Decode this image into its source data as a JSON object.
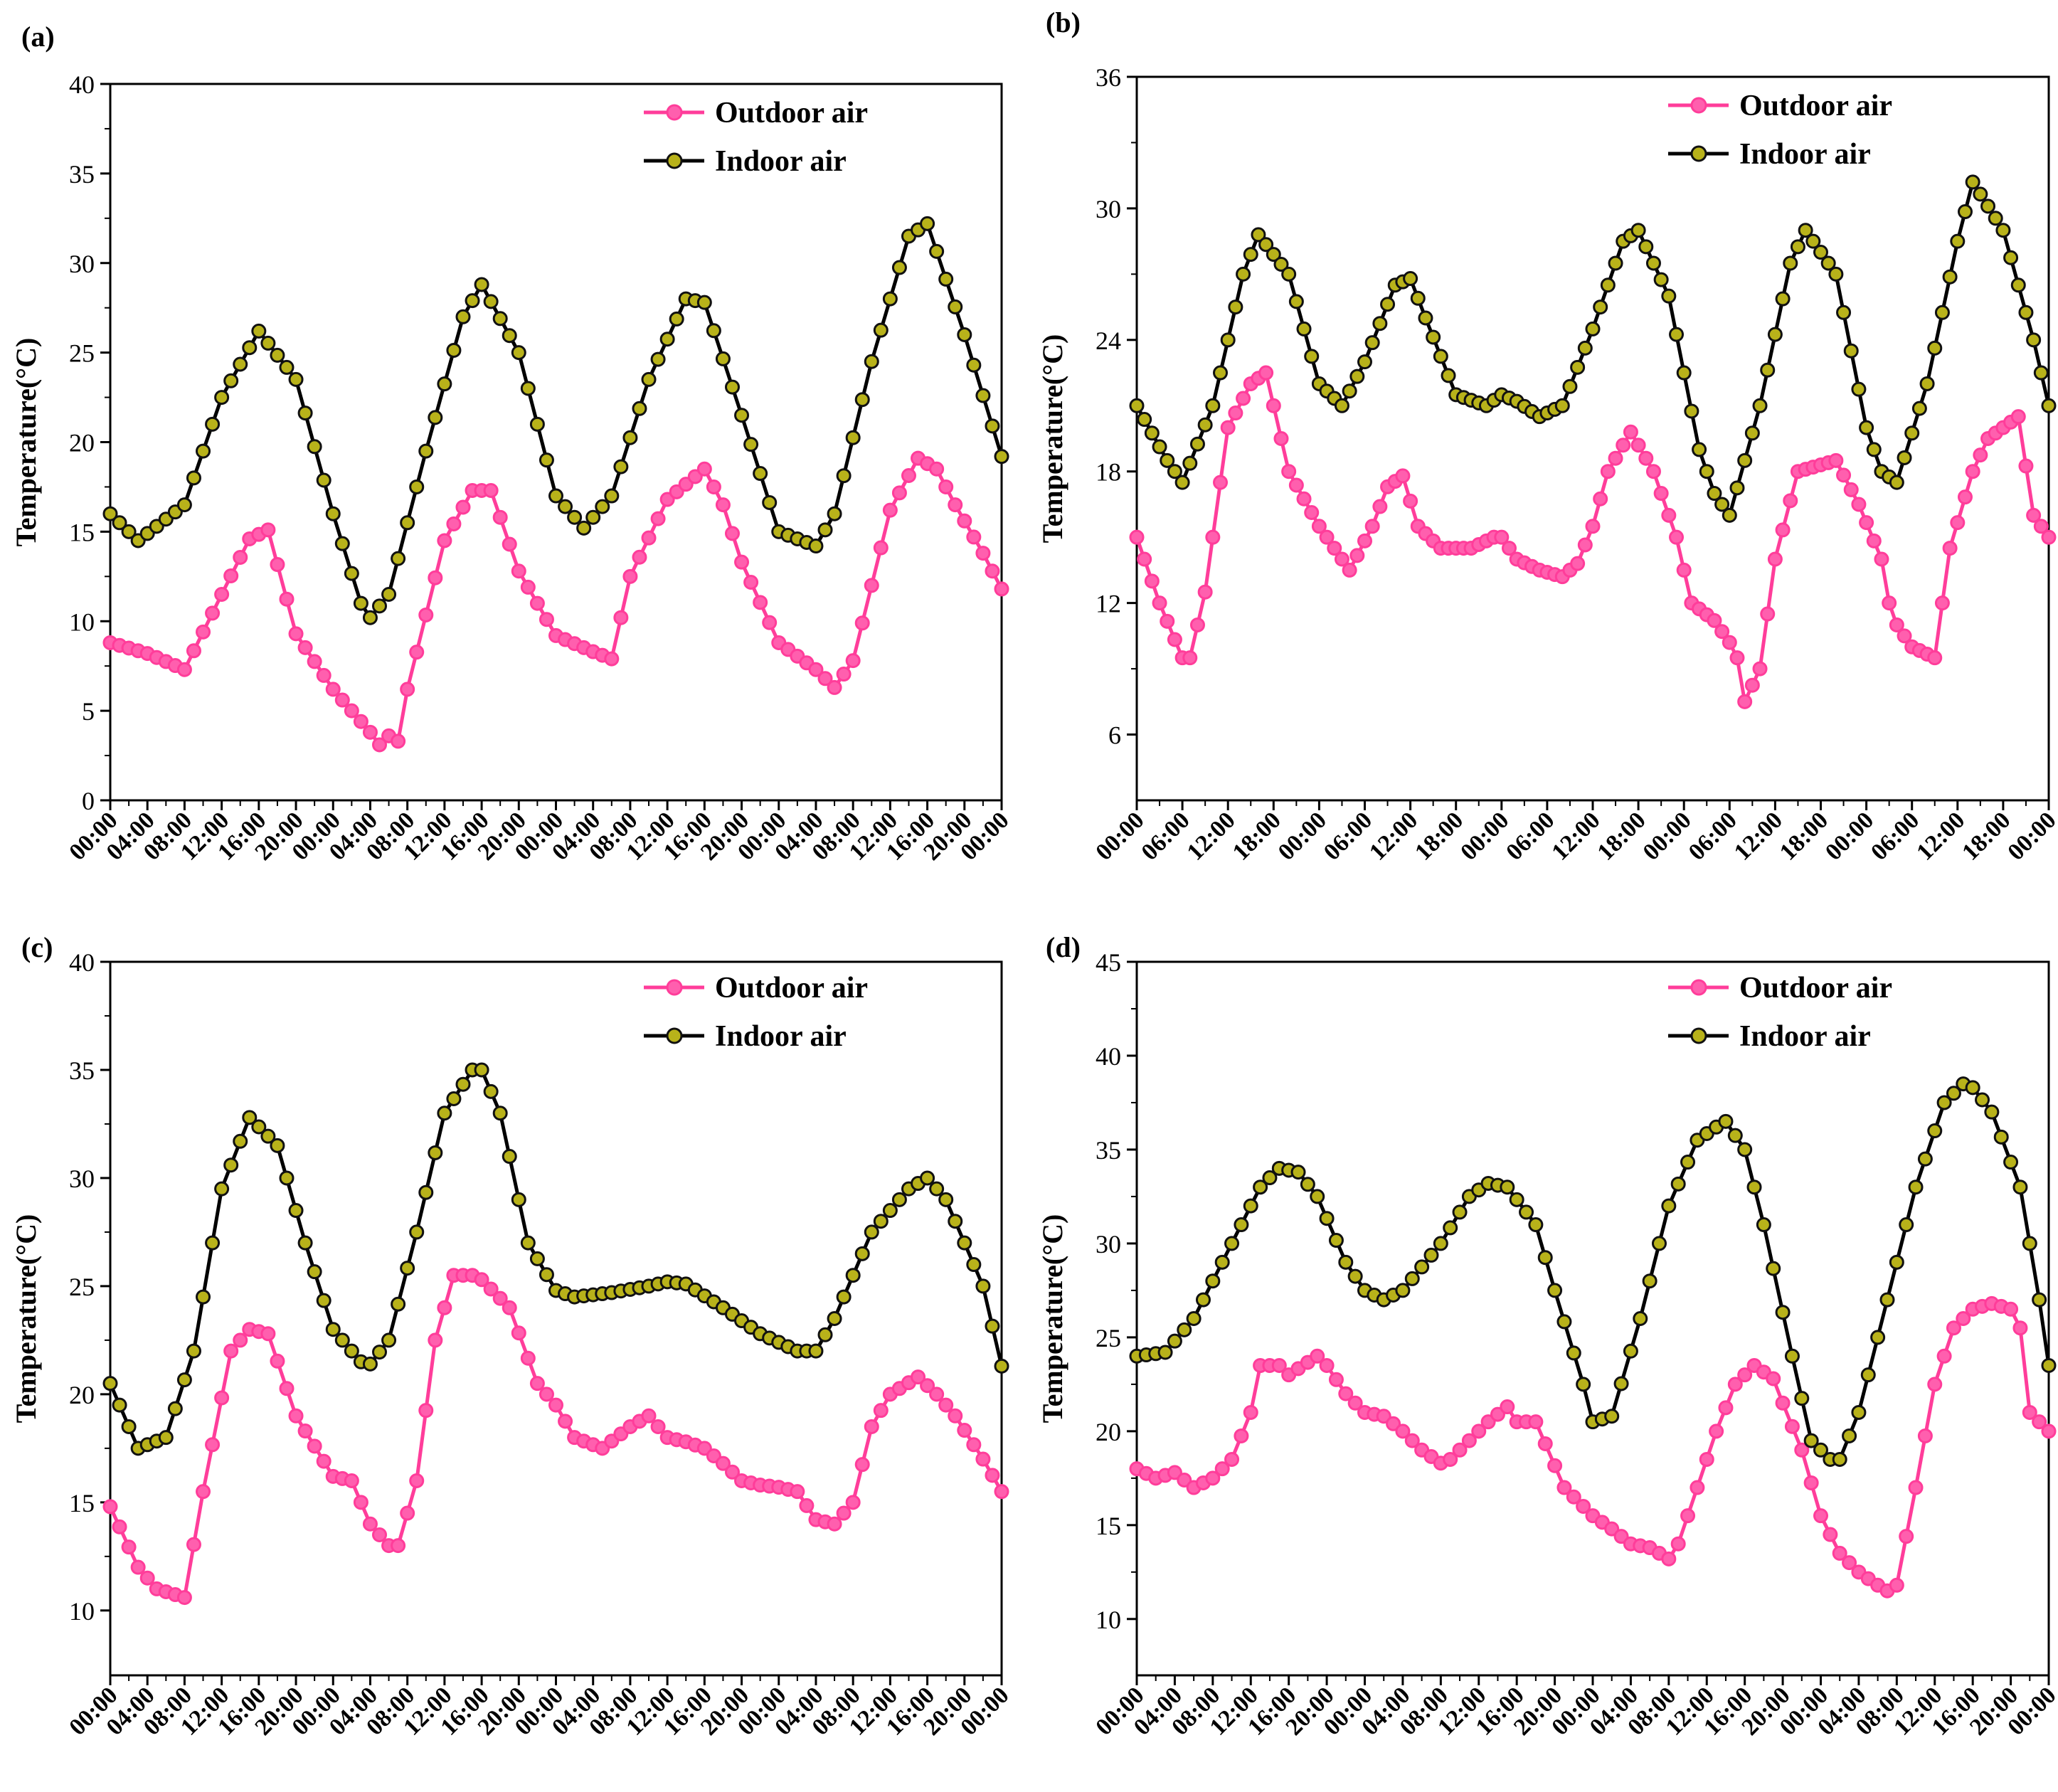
{
  "colors": {
    "outdoor": "#ff3d9a",
    "outdoor_fill": "#ff5fae",
    "indoor": "#000000",
    "indoor_fill": "#b8b21a"
  },
  "chart_data": [
    {
      "panel_label": "(a)",
      "type": "line",
      "ylabel": "Temperature(°C)",
      "ylim": [
        0,
        40
      ],
      "yticks": [
        "0",
        "5",
        "10",
        "15",
        "20",
        "25",
        "30",
        "35",
        "40"
      ],
      "xlim": [
        0,
        96
      ],
      "xtick_labels": [
        "00:00",
        "04:00",
        "08:00",
        "12:00",
        "16:00",
        "20:00",
        "00:00",
        "04:00",
        "08:00",
        "12:00",
        "16:00",
        "20:00",
        "00:00",
        "04:00",
        "08:00",
        "12:00",
        "16:00",
        "20:00",
        "00:00",
        "04:00",
        "08:00",
        "12:00",
        "16:00",
        "20:00",
        "00:00"
      ],
      "xtick_hours": [
        0,
        4,
        8,
        12,
        16,
        20,
        24,
        28,
        32,
        36,
        40,
        44,
        48,
        52,
        56,
        60,
        64,
        68,
        72,
        76,
        80,
        84,
        88,
        92,
        96
      ],
      "legend": [
        "Outdoor air",
        "Indoor air"
      ],
      "series": [
        {
          "name": "Outdoor air",
          "x": [
            0,
            4,
            8,
            12,
            15,
            17,
            20,
            24,
            28,
            29,
            30,
            31,
            32,
            36,
            39,
            41,
            44,
            48,
            52,
            54,
            56,
            60,
            64,
            66,
            68,
            72,
            76,
            78,
            80,
            84,
            87,
            89,
            91,
            94,
            96
          ],
          "y": [
            8.8,
            8.2,
            7.3,
            11.5,
            14.6,
            15.1,
            9.3,
            6.2,
            3.8,
            3.1,
            3.6,
            3.3,
            6.2,
            14.5,
            17.3,
            17.3,
            12.8,
            9.2,
            8.3,
            7.9,
            12.5,
            16.8,
            18.5,
            16.5,
            13.3,
            8.8,
            7.3,
            6.3,
            7.8,
            16.2,
            19.1,
            18.5,
            16.5,
            13.8,
            11.8
          ]
        },
        {
          "name": "Indoor air",
          "x": [
            0,
            3,
            8,
            12,
            16,
            20,
            24,
            27,
            28,
            30,
            34,
            38,
            40,
            44,
            48,
            51,
            54,
            58,
            62,
            64,
            68,
            72,
            76,
            78,
            82,
            86,
            88,
            92,
            96
          ],
          "y": [
            16.0,
            14.5,
            16.5,
            22.5,
            26.2,
            23.5,
            16.0,
            11.0,
            10.2,
            11.5,
            19.5,
            27.0,
            28.8,
            25.0,
            17.0,
            15.2,
            17.0,
            23.5,
            28.0,
            27.8,
            21.5,
            15.0,
            14.2,
            16.0,
            24.5,
            31.5,
            32.2,
            26.0,
            19.2
          ]
        }
      ]
    },
    {
      "panel_label": "(b)",
      "type": "line",
      "ylabel": "Temperature(°C)",
      "ylim": [
        3,
        36
      ],
      "yticks": [
        "6",
        "12",
        "18",
        "24",
        "30",
        "36"
      ],
      "xlim": [
        0,
        120
      ],
      "xtick_labels": [
        "00:00",
        "06:00",
        "12:00",
        "18:00",
        "00:00",
        "06:00",
        "12:00",
        "18:00",
        "00:00",
        "06:00",
        "12:00",
        "18:00",
        "00:00",
        "06:00",
        "12:00",
        "18:00",
        "00:00",
        "06:00",
        "12:00",
        "18:00",
        "00:00"
      ],
      "xtick_hours": [
        0,
        6,
        12,
        18,
        24,
        30,
        36,
        42,
        48,
        54,
        60,
        66,
        72,
        78,
        84,
        90,
        96,
        102,
        108,
        114,
        120
      ],
      "legend": [
        "Outdoor air",
        "Indoor air"
      ],
      "series": [
        {
          "name": "Outdoor air",
          "x": [
            0,
            3,
            6,
            7,
            9,
            12,
            15,
            17,
            20,
            24,
            28,
            31,
            33,
            35,
            37,
            40,
            44,
            47,
            48,
            50,
            53,
            56,
            58,
            60,
            62,
            65,
            68,
            71,
            73,
            76,
            78,
            79,
            80,
            82,
            84,
            87,
            90,
            92,
            95,
            98,
            99,
            100,
            102,
            105,
            107,
            110,
            112,
            116,
            118,
            120
          ],
          "y": [
            15.0,
            12.0,
            9.5,
            9.5,
            12.5,
            20.0,
            22.0,
            22.5,
            18.0,
            15.5,
            13.5,
            15.5,
            17.3,
            17.8,
            15.5,
            14.5,
            14.5,
            15.0,
            15.0,
            14.0,
            13.5,
            13.2,
            13.8,
            15.5,
            18.0,
            19.8,
            18.0,
            15.0,
            12.0,
            11.2,
            10.2,
            9.5,
            7.5,
            9.0,
            14.0,
            18.0,
            18.3,
            18.5,
            16.5,
            14.0,
            12.0,
            11.0,
            10.0,
            9.5,
            14.5,
            18.0,
            19.5,
            20.5,
            16.0,
            15.0
          ]
        },
        {
          "name": "Indoor air",
          "x": [
            0,
            4,
            6,
            10,
            14,
            16,
            20,
            24,
            27,
            30,
            34,
            36,
            38,
            42,
            46,
            48,
            50,
            53,
            56,
            60,
            64,
            66,
            70,
            74,
            76,
            78,
            82,
            86,
            88,
            92,
            96,
            98,
            100,
            104,
            108,
            110,
            114,
            118,
            120
          ],
          "y": [
            21.0,
            18.5,
            17.5,
            21.0,
            27.0,
            28.8,
            27.0,
            22.0,
            21.0,
            23.0,
            26.5,
            26.8,
            25.0,
            21.5,
            21.0,
            21.5,
            21.2,
            20.5,
            21.0,
            24.5,
            28.5,
            29.0,
            26.0,
            19.0,
            17.0,
            16.0,
            21.0,
            27.5,
            29.0,
            27.0,
            20.0,
            18.0,
            17.5,
            22.0,
            28.5,
            31.2,
            29.0,
            24.0,
            21.0
          ]
        }
      ]
    },
    {
      "panel_label": "(c)",
      "type": "line",
      "ylabel": "Temperature(°C)",
      "ylim": [
        7,
        40
      ],
      "yticks": [
        "10",
        "15",
        "20",
        "25",
        "30",
        "35",
        "40"
      ],
      "xlim": [
        0,
        96
      ],
      "xtick_labels": [
        "00:00",
        "04:00",
        "08:00",
        "12:00",
        "16:00",
        "20:00",
        "00:00",
        "04:00",
        "08:00",
        "12:00",
        "16:00",
        "20:00",
        "00:00",
        "04:00",
        "08:00",
        "12:00",
        "16:00",
        "20:00",
        "00:00",
        "04:00",
        "08:00",
        "12:00",
        "16:00",
        "20:00",
        "00:00"
      ],
      "xtick_hours": [
        0,
        4,
        8,
        12,
        16,
        20,
        24,
        28,
        32,
        36,
        40,
        44,
        48,
        52,
        56,
        60,
        64,
        68,
        72,
        76,
        80,
        84,
        88,
        92,
        96
      ],
      "legend": [
        "Outdoor air",
        "Indoor air"
      ],
      "series": [
        {
          "name": "Outdoor air",
          "x": [
            0,
            3,
            5,
            8,
            10,
            13,
            15,
            17,
            20,
            24,
            26,
            28,
            30,
            31,
            33,
            35,
            37,
            39,
            40,
            43,
            46,
            48,
            50,
            53,
            56,
            58,
            60,
            62,
            64,
            66,
            68,
            70,
            72,
            74,
            76,
            78,
            80,
            82,
            84,
            87,
            89,
            91,
            94,
            96
          ],
          "y": [
            14.8,
            12.0,
            11.0,
            10.6,
            15.5,
            22.0,
            23.0,
            22.8,
            19.0,
            16.2,
            16.0,
            14.0,
            13.0,
            13.0,
            16.0,
            22.5,
            25.5,
            25.5,
            25.3,
            24.0,
            20.5,
            19.5,
            18.0,
            17.5,
            18.5,
            19.0,
            18.0,
            17.8,
            17.5,
            16.8,
            16.0,
            15.8,
            15.7,
            15.5,
            14.2,
            14.0,
            15.0,
            18.5,
            20.0,
            20.8,
            20.0,
            19.0,
            17.0,
            15.5
          ]
        },
        {
          "name": "Indoor air",
          "x": [
            0,
            3,
            6,
            9,
            12,
            15,
            18,
            21,
            24,
            27,
            28,
            30,
            33,
            36,
            39,
            40,
            42,
            45,
            48,
            50,
            54,
            58,
            60,
            62,
            66,
            70,
            74,
            76,
            78,
            82,
            86,
            88,
            90,
            94,
            96
          ],
          "y": [
            20.5,
            17.5,
            18.0,
            22.0,
            29.5,
            32.8,
            31.5,
            27.0,
            23.0,
            21.5,
            21.4,
            22.5,
            27.5,
            33.0,
            35.0,
            35.0,
            33.0,
            27.0,
            24.8,
            24.5,
            24.7,
            25.0,
            25.2,
            25.1,
            24.0,
            22.8,
            22.0,
            22.0,
            23.5,
            27.5,
            29.5,
            30.0,
            29.0,
            25.0,
            21.3
          ]
        }
      ]
    },
    {
      "panel_label": "(d)",
      "type": "line",
      "ylabel": "Temperature(°C)",
      "ylim": [
        7,
        45
      ],
      "yticks": [
        "10",
        "15",
        "20",
        "25",
        "30",
        "35",
        "40",
        "45"
      ],
      "xlim": [
        0,
        96
      ],
      "xtick_labels": [
        "00:00",
        "04:00",
        "08:00",
        "12:00",
        "16:00",
        "20:00",
        "00:00",
        "04:00",
        "08:00",
        "12:00",
        "16:00",
        "20:00",
        "00:00",
        "04:00",
        "08:00",
        "12:00",
        "16:00",
        "20:00",
        "00:00",
        "04:00",
        "08:00",
        "12:00",
        "16:00",
        "20:00",
        "00:00"
      ],
      "xtick_hours": [
        0,
        4,
        8,
        12,
        16,
        20,
        24,
        28,
        32,
        36,
        40,
        44,
        48,
        52,
        56,
        60,
        64,
        68,
        72,
        76,
        80,
        84,
        88,
        92,
        96
      ],
      "legend": [
        "Outdoor air",
        "Indoor air"
      ],
      "series": [
        {
          "name": "Outdoor air",
          "x": [
            0,
            2,
            4,
            6,
            8,
            10,
            12,
            13,
            15,
            16,
            19,
            20,
            22,
            24,
            26,
            28,
            30,
            32,
            33,
            35,
            37,
            39,
            40,
            42,
            45,
            48,
            50,
            52,
            54,
            56,
            57,
            59,
            61,
            63,
            65,
            67,
            68,
            70,
            72,
            74,
            76,
            78,
            79,
            80,
            82,
            84,
            86,
            88,
            90,
            92,
            93,
            94,
            96
          ],
          "y": [
            18.0,
            17.5,
            17.8,
            17.0,
            17.5,
            18.5,
            21.0,
            23.5,
            23.5,
            23.0,
            24.0,
            23.5,
            22.0,
            21.0,
            20.8,
            20.0,
            19.0,
            18.3,
            18.5,
            19.5,
            20.5,
            21.3,
            20.5,
            20.5,
            17.0,
            15.5,
            14.8,
            14.0,
            13.8,
            13.2,
            14.0,
            17.0,
            20.0,
            22.5,
            23.5,
            22.8,
            21.5,
            19.0,
            15.5,
            13.5,
            12.5,
            11.8,
            11.5,
            11.8,
            17.0,
            22.5,
            25.5,
            26.5,
            26.8,
            26.5,
            25.5,
            21.0,
            20.0
          ]
        },
        {
          "name": "Indoor air",
          "x": [
            0,
            3,
            6,
            10,
            13,
            15,
            17,
            19,
            22,
            24,
            26,
            28,
            32,
            35,
            37,
            39,
            42,
            44,
            47,
            48,
            50,
            53,
            56,
            59,
            61,
            62,
            64,
            66,
            69,
            71,
            73,
            74,
            76,
            79,
            82,
            85,
            87,
            88,
            90,
            93,
            95,
            96
          ],
          "y": [
            24.0,
            24.2,
            26.0,
            30.0,
            33.0,
            34.0,
            33.8,
            32.5,
            29.0,
            27.5,
            27.0,
            27.5,
            30.0,
            32.5,
            33.2,
            33.0,
            31.0,
            27.5,
            22.5,
            20.5,
            20.8,
            26.0,
            32.0,
            35.5,
            36.2,
            36.5,
            35.0,
            31.0,
            24.0,
            19.5,
            18.5,
            18.5,
            21.0,
            27.0,
            33.0,
            37.5,
            38.5,
            38.3,
            37.0,
            33.0,
            27.0,
            23.5
          ]
        }
      ]
    }
  ]
}
